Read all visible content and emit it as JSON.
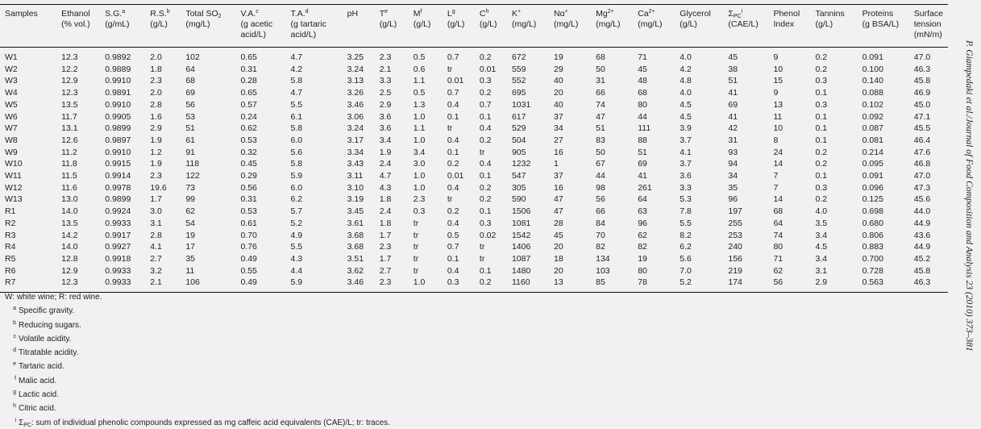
{
  "side_caption": "P. Giampedaki et al./Journal of Food Composition and Analysis 23 (2010) 373–381",
  "table": {
    "columns": [
      {
        "label": "Samples",
        "lines": []
      },
      {
        "label": "Ethanol",
        "lines": [
          "(% vol.)"
        ]
      },
      {
        "label": "S.G.",
        "sup": "a",
        "lines": [
          "(g/mL)"
        ]
      },
      {
        "label": "R.S.",
        "sup": "b",
        "lines": [
          "(g/L)"
        ]
      },
      {
        "label": "Total SO",
        "sub": "2",
        "lines": [
          "(mg/L)"
        ]
      },
      {
        "label": "V.A.",
        "sup": "c",
        "lines": [
          "(g acetic",
          "acid/L)"
        ]
      },
      {
        "label": "T.A.",
        "sup": "d",
        "lines": [
          "(g tartaric",
          "acid/L)"
        ]
      },
      {
        "label": "pH",
        "lines": []
      },
      {
        "label": "T",
        "sup": "e",
        "lines": [
          "(g/L)"
        ]
      },
      {
        "label": "M",
        "sup": "f",
        "lines": [
          "(g/L)"
        ]
      },
      {
        "label": "L",
        "sup": "g",
        "lines": [
          "(g/L)"
        ]
      },
      {
        "label": "C",
        "sup": "h",
        "lines": [
          "(g/L)"
        ]
      },
      {
        "label": "K",
        "sup": "+",
        "lines": [
          "(mg/L)"
        ]
      },
      {
        "label": "Nα",
        "sup": "+",
        "lines": [
          "(mg/L)"
        ]
      },
      {
        "label": "Mg",
        "sup": "2+",
        "lines": [
          "(mg/L)"
        ]
      },
      {
        "label": "Ca",
        "sup": "2+",
        "lines": [
          "(mg/L)"
        ]
      },
      {
        "label": "Glycerol",
        "lines": [
          "(g/L)"
        ]
      },
      {
        "label": "Σ",
        "sub": "PC",
        "sup": "i",
        "lines": [
          "(CAE/L)"
        ]
      },
      {
        "label": "Phenol",
        "lines": [
          "Index"
        ]
      },
      {
        "label": "Tannins",
        "lines": [
          "(g/L)"
        ]
      },
      {
        "label": "Proteins",
        "lines": [
          "(g BSA/L)"
        ]
      },
      {
        "label": "Surface",
        "lines": [
          "tension",
          "(mN/m)"
        ]
      }
    ],
    "rows": [
      [
        "W1",
        "12.3",
        "0.9892",
        "2.0",
        "102",
        "0.65",
        "4.7",
        "3.25",
        "2.3",
        "0.5",
        "0.7",
        "0.2",
        "672",
        "19",
        "68",
        "71",
        "4.0",
        "45",
        "9",
        "0.2",
        "0.091",
        "47.0"
      ],
      [
        "W2",
        "12.2",
        "0.9889",
        "1.8",
        "64",
        "0.31",
        "4.2",
        "3.24",
        "2.1",
        "0.6",
        "tr",
        "0.01",
        "559",
        "29",
        "50",
        "45",
        "4.2",
        "38",
        "10",
        "0.2",
        "0.100",
        "46.3"
      ],
      [
        "W3",
        "12.9",
        "0.9910",
        "2.3",
        "68",
        "0.28",
        "5.8",
        "3.13",
        "3.3",
        "1.1",
        "0.01",
        "0.3",
        "552",
        "40",
        "31",
        "48",
        "4.8",
        "51",
        "15",
        "0.3",
        "0.140",
        "45.8"
      ],
      [
        "W4",
        "12.3",
        "0.9891",
        "2.0",
        "69",
        "0.65",
        "4.7",
        "3.26",
        "2.5",
        "0.5",
        "0.7",
        "0.2",
        "695",
        "20",
        "66",
        "68",
        "4.0",
        "41",
        "9",
        "0.1",
        "0.088",
        "46.9"
      ],
      [
        "W5",
        "13.5",
        "0.9910",
        "2.8",
        "56",
        "0.57",
        "5.5",
        "3.46",
        "2.9",
        "1.3",
        "0.4",
        "0.7",
        "1031",
        "40",
        "74",
        "80",
        "4.5",
        "69",
        "13",
        "0.3",
        "0.102",
        "45.0"
      ],
      [
        "W6",
        "11.7",
        "0.9905",
        "1.6",
        "53",
        "0.24",
        "6.1",
        "3.06",
        "3.6",
        "1.0",
        "0.1",
        "0.1",
        "617",
        "37",
        "47",
        "44",
        "4.5",
        "41",
        "11",
        "0.1",
        "0.092",
        "47.1"
      ],
      [
        "W7",
        "13.1",
        "0.9899",
        "2.9",
        "51",
        "0.62",
        "5.8",
        "3.24",
        "3.6",
        "1.1",
        "tr",
        "0.4",
        "529",
        "34",
        "51",
        "111",
        "3.9",
        "42",
        "10",
        "0.1",
        "0.087",
        "45.5"
      ],
      [
        "W8",
        "12.6",
        "0.9897",
        "1.9",
        "61",
        "0.53",
        "6.0",
        "3.17",
        "3.4",
        "1.0",
        "0.4",
        "0.2",
        "504",
        "27",
        "83",
        "88",
        "3.7",
        "31",
        "8",
        "0.1",
        "0.081",
        "46.4"
      ],
      [
        "W9",
        "11.2",
        "0.9910",
        "1.2",
        "91",
        "0.32",
        "5.6",
        "3.34",
        "1.9",
        "3.4",
        "0.1",
        "tr",
        "905",
        "16",
        "50",
        "51",
        "4.1",
        "93",
        "24",
        "0.2",
        "0.214",
        "47.6"
      ],
      [
        "W10",
        "11.8",
        "0.9915",
        "1.9",
        "118",
        "0.45",
        "5.8",
        "3.43",
        "2.4",
        "3.0",
        "0.2",
        "0.4",
        "1232",
        "1",
        "67",
        "69",
        "3.7",
        "94",
        "14",
        "0.2",
        "0.095",
        "46.8"
      ],
      [
        "W11",
        "11.5",
        "0.9914",
        "2.3",
        "122",
        "0.29",
        "5.9",
        "3.11",
        "4.7",
        "1.0",
        "0.01",
        "0.1",
        "547",
        "37",
        "44",
        "41",
        "3.6",
        "34",
        "7",
        "0.1",
        "0.091",
        "47.0"
      ],
      [
        "W12",
        "11.6",
        "0.9978",
        "19.6",
        "73",
        "0.56",
        "6.0",
        "3.10",
        "4.3",
        "1.0",
        "0.4",
        "0.2",
        "305",
        "16",
        "98",
        "261",
        "3.3",
        "35",
        "7",
        "0.3",
        "0.096",
        "47.3"
      ],
      [
        "W13",
        "13.0",
        "0.9899",
        "1.7",
        "99",
        "0.31",
        "6.2",
        "3.19",
        "1.8",
        "2.3",
        "tr",
        "0.2",
        "590",
        "47",
        "56",
        "64",
        "5.3",
        "96",
        "14",
        "0.2",
        "0.125",
        "45.6"
      ],
      [
        "R1",
        "14.0",
        "0.9924",
        "3.0",
        "62",
        "0.53",
        "5.7",
        "3.45",
        "2.4",
        "0.3",
        "0.2",
        "0.1",
        "1506",
        "47",
        "66",
        "63",
        "7.8",
        "197",
        "68",
        "4.0",
        "0.698",
        "44.0"
      ],
      [
        "R2",
        "13.5",
        "0.9933",
        "3.1",
        "54",
        "0.61",
        "5.2",
        "3.61",
        "1.8",
        "tr",
        "0.4",
        "0.3",
        "1081",
        "28",
        "84",
        "96",
        "5.5",
        "255",
        "64",
        "3.5",
        "0.680",
        "44.9"
      ],
      [
        "R3",
        "14.2",
        "0.9917",
        "2.8",
        "19",
        "0.70",
        "4.9",
        "3.68",
        "1.7",
        "tr",
        "0.5",
        "0.02",
        "1542",
        "45",
        "70",
        "62",
        "8.2",
        "253",
        "74",
        "3.4",
        "0.806",
        "43.6"
      ],
      [
        "R4",
        "14.0",
        "0.9927",
        "4.1",
        "17",
        "0.76",
        "5.5",
        "3.68",
        "2.3",
        "tr",
        "0.7",
        "tr",
        "1406",
        "20",
        "82",
        "82",
        "6.2",
        "240",
        "80",
        "4.5",
        "0.883",
        "44.9"
      ],
      [
        "R5",
        "12.8",
        "0.9918",
        "2.7",
        "35",
        "0.49",
        "4.3",
        "3.51",
        "1.7",
        "tr",
        "0.1",
        "tr",
        "1087",
        "18",
        "134",
        "19",
        "5.6",
        "156",
        "71",
        "3.4",
        "0.700",
        "45.2"
      ],
      [
        "R6",
        "12.9",
        "0.9933",
        "3.2",
        "11",
        "0.55",
        "4.4",
        "3.62",
        "2.7",
        "tr",
        "0.4",
        "0.1",
        "1480",
        "20",
        "103",
        "80",
        "7.0",
        "219",
        "62",
        "3.1",
        "0.728",
        "45.8"
      ],
      [
        "R7",
        "12.3",
        "0.9933",
        "2.1",
        "106",
        "0.49",
        "5.9",
        "3.46",
        "2.3",
        "1.0",
        "0.3",
        "0.2",
        "1160",
        "13",
        "85",
        "78",
        "5.2",
        "174",
        "56",
        "2.9",
        "0.563",
        "46.3"
      ]
    ]
  },
  "footnotes": [
    {
      "mark": "",
      "text": "W: white wine; R: red wine."
    },
    {
      "mark": "a",
      "text": "Specific gravity."
    },
    {
      "mark": "b",
      "text": "Reducing sugars."
    },
    {
      "mark": "c",
      "text": "Volatile acidity."
    },
    {
      "mark": "d",
      "text": "Titratable acidity."
    },
    {
      "mark": "e",
      "text": "Tartaric acid."
    },
    {
      "mark": "f",
      "text": "Malic acid."
    },
    {
      "mark": "g",
      "text": "Lactic acid."
    },
    {
      "mark": "h",
      "text": "Citric acid."
    },
    {
      "mark": "i",
      "sym": "Σ",
      "sub": "PC",
      "text": ": sum of individual phenolic compounds expressed as mg caffeic acid equivalents (CAE)/L; tr: traces."
    }
  ]
}
